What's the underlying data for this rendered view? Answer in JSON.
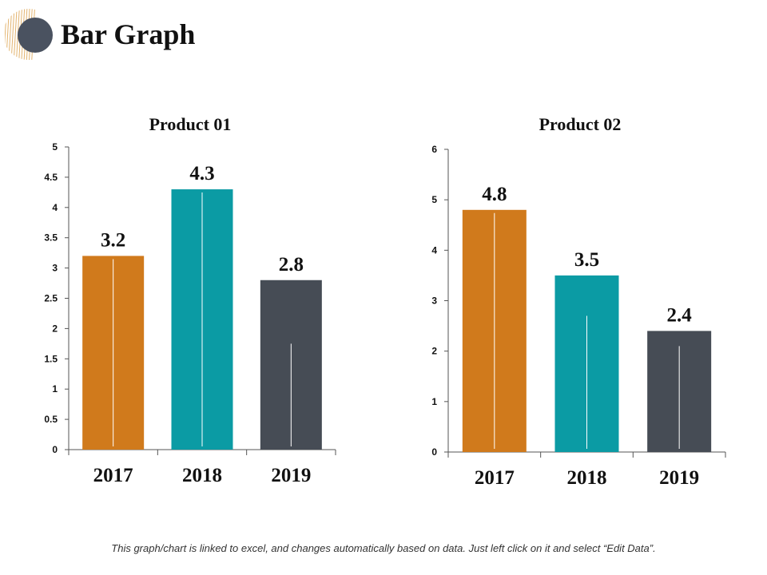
{
  "page": {
    "title": "Bar Graph",
    "footnote": "This graph/chart is linked to excel, and changes automatically based on data. Just left click on it and select “Edit Data”.",
    "logo_icon": "decorative-circle-icon"
  },
  "colors": {
    "c2017": "#D07A1C",
    "c2018": "#0B9BA4",
    "c2019": "#464C55",
    "axis": "#555555",
    "logo_circle": "#4A5260",
    "logo_stripes": "#E3B470"
  },
  "chart_data": [
    {
      "type": "bar",
      "title": "Product 01",
      "categories": [
        "2017",
        "2018",
        "2019"
      ],
      "values": [
        3.2,
        4.3,
        2.8
      ],
      "data_labels": [
        "3.2",
        "4.3",
        "2.8"
      ],
      "yticks": [
        "0",
        "0.5",
        "1",
        "1.5",
        "2",
        "2.5",
        "3",
        "3.5",
        "4",
        "4.5",
        "5"
      ],
      "ylim": [
        0,
        5
      ],
      "xlabel": "",
      "ylabel": "",
      "grid": false,
      "legend": "none"
    },
    {
      "type": "bar",
      "title": "Product 02",
      "categories": [
        "2017",
        "2018",
        "2019"
      ],
      "values": [
        4.8,
        3.5,
        2.4
      ],
      "data_labels": [
        "4.8",
        "3.5",
        "2.4"
      ],
      "yticks": [
        "0",
        "1",
        "2",
        "3",
        "4",
        "5",
        "6"
      ],
      "ylim": [
        0,
        6
      ],
      "xlabel": "",
      "ylabel": "",
      "grid": false,
      "legend": "none"
    }
  ]
}
